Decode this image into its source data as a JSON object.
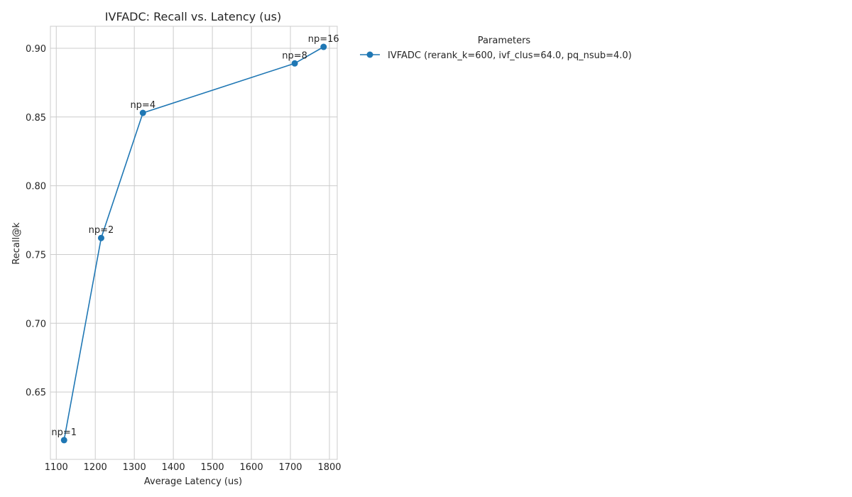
{
  "chart_data": {
    "type": "line",
    "title": "IVFADC: Recall vs. Latency (us)",
    "xlabel": "Average Latency (us)",
    "ylabel": "Recall@k",
    "xlim": [
      1085,
      1820
    ],
    "ylim": [
      0.601,
      0.916
    ],
    "xticks": [
      1100,
      1200,
      1300,
      1400,
      1500,
      1600,
      1700,
      1800
    ],
    "yticks": [
      0.65,
      0.7,
      0.75,
      0.8,
      0.85,
      0.9
    ],
    "ytick_labels": [
      "0.65",
      "0.70",
      "0.75",
      "0.80",
      "0.85",
      "0.90"
    ],
    "grid": true,
    "legend": {
      "title": "Parameters",
      "placement": "outside-right-top"
    },
    "series": [
      {
        "name": "IVFADC (rerank_k=600, ivf_clus=64.0, pq_nsub=4.0)",
        "color": "#1f77b4",
        "marker": "circle",
        "points": [
          {
            "x": 1120,
            "y": 0.615,
            "label": "np=1"
          },
          {
            "x": 1215,
            "y": 0.762,
            "label": "np=2"
          },
          {
            "x": 1322,
            "y": 0.853,
            "label": "np=4"
          },
          {
            "x": 1711,
            "y": 0.889,
            "label": "np=8"
          },
          {
            "x": 1785,
            "y": 0.901,
            "label": "np=16"
          }
        ]
      }
    ]
  }
}
